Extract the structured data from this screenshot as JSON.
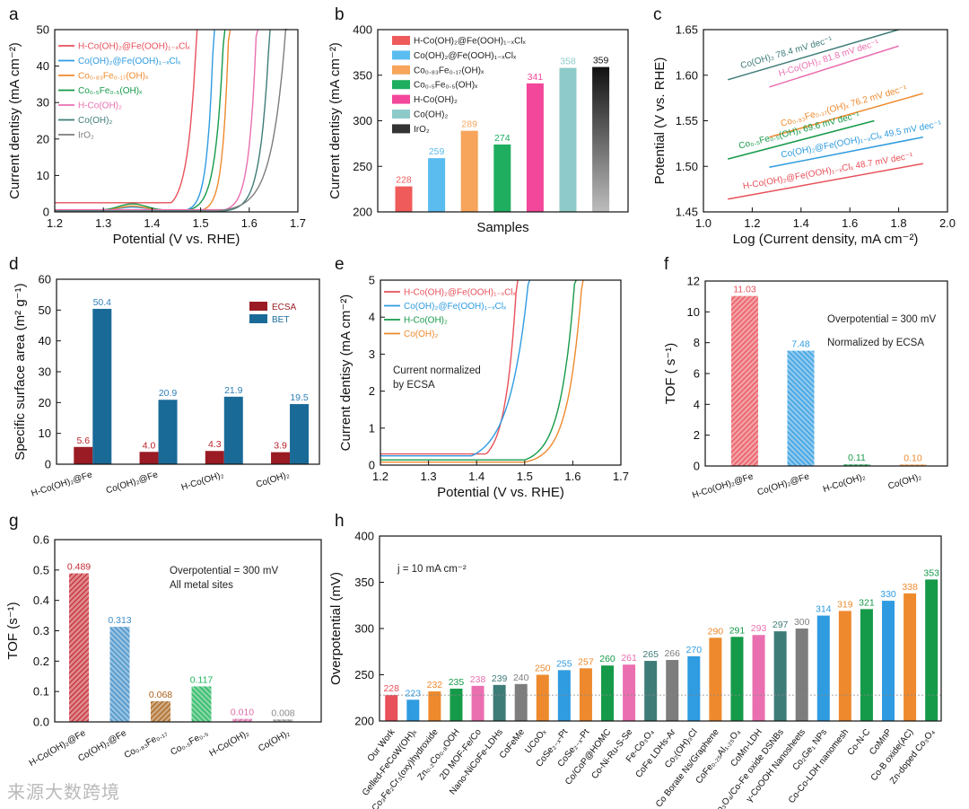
{
  "panels": {
    "a": "a",
    "b": "b",
    "c": "c",
    "d": "d",
    "e": "e",
    "f": "f",
    "g": "g",
    "h": "h"
  },
  "colors": {
    "red": "#e8515a",
    "blue": "#2f9be0",
    "orange": "#ee8a2d",
    "green": "#159a49",
    "pink": "#ea6fb0",
    "teal": "#3e7c78",
    "gray": "#7d7d7d",
    "ecsa": "#9a1b23",
    "bet": "#1a6a98"
  },
  "chart_data": [
    {
      "id": "a",
      "type": "line",
      "xlabel": "Potential (V vs. RHE)",
      "ylabel": "Current dentisy (mA cm⁻²)",
      "xlim": [
        1.2,
        1.7
      ],
      "ylim": [
        0,
        50
      ],
      "xticks": [
        "1.2",
        "1.3",
        "1.4",
        "1.5",
        "1.6",
        "1.7"
      ],
      "yticks": [
        "0",
        "10",
        "20",
        "30",
        "40",
        "50"
      ],
      "legend_position": "top-left",
      "series": [
        {
          "name": "H-Co(OH)₂@Fe(OOH)₁₋ₓClₓ",
          "color": "red",
          "onset": 1.44,
          "end": 1.493,
          "base": 2.5,
          "hump": 0
        },
        {
          "name": "Co(OH)₂@Fe(OOH)₁₋ₓClₓ",
          "color": "blue",
          "onset": 1.47,
          "end": 1.527,
          "base": 0.5,
          "hump": 0.8
        },
        {
          "name": "Co₀.₈₃Fe₀.₁₇(OH)ₓ",
          "color": "orange",
          "onset": 1.5,
          "end": 1.558,
          "base": 0.4,
          "hump": 1.2
        },
        {
          "name": "Co₀.₅Fe₀.₅(OH)ₓ",
          "color": "green",
          "onset": 1.47,
          "end": 1.548,
          "base": 0.4,
          "hump": 1.8
        },
        {
          "name": "H-Co(OH)₂",
          "color": "pink",
          "onset": 1.55,
          "end": 1.615,
          "base": 0.6,
          "hump": 0
        },
        {
          "name": "Co(OH)₂",
          "color": "teal",
          "onset": 1.55,
          "end": 1.642,
          "base": 0.3,
          "hump": 0
        },
        {
          "name": "IrO₂",
          "color": "gray",
          "onset": 1.5,
          "end": 1.675,
          "base": 0.1,
          "hump": 0
        }
      ]
    },
    {
      "id": "b",
      "type": "bar",
      "xlabel": "Samples",
      "ylabel": "Current dentisy (mA cm⁻²)",
      "ylim": [
        200,
        400
      ],
      "yticks": [
        "200",
        "250",
        "300",
        "350",
        "400"
      ],
      "legend_position": "top-left",
      "categories": [
        "H-Co(OH)₂@Fe(OOH)₁₋ₓClₓ",
        "Co(OH)₂@Fe(OOH)₁₋ₓClₓ",
        "Co₀.₈₃Fe₀.₁₇(OH)ₓ",
        "Co₀.₅Fe₀.₅(OH)ₓ",
        "H-Co(OH)₂",
        "Co(OH)₂",
        "IrO₂"
      ],
      "values": [
        228,
        259,
        289,
        274,
        341,
        358,
        359
      ],
      "colors": [
        "#ef5b5b",
        "#5bbcf0",
        "#f6a55b",
        "#1fae5f",
        "#f2479a",
        "#8fcaca",
        "#222222"
      ]
    },
    {
      "id": "c",
      "type": "line",
      "xlabel": "Log (Current density, mA cm⁻²)",
      "ylabel": "Potential (V vs. RHE)",
      "xlim": [
        1.0,
        2.0
      ],
      "ylim": [
        1.45,
        1.65
      ],
      "xticks": [
        "1.0",
        "1.2",
        "1.4",
        "1.6",
        "1.8",
        "2.0"
      ],
      "yticks": [
        "1.45",
        "1.50",
        "1.55",
        "1.60",
        "1.65"
      ],
      "series": [
        {
          "name": "Co(OH)₂ 78.4 mV dec⁻¹",
          "color": "teal",
          "x": [
            1.1,
            1.8
          ],
          "y": [
            1.595,
            1.65
          ]
        },
        {
          "name": "H-Co(OH)₂ 81.8 mV dec⁻¹",
          "color": "pink",
          "x": [
            1.27,
            1.8
          ],
          "y": [
            1.587,
            1.632
          ]
        },
        {
          "name": "Co₀.₈₃Fe₀.₁₇(OH)ₓ 76.2 mV dec⁻¹",
          "color": "orange",
          "x": [
            1.27,
            1.9
          ],
          "y": [
            1.532,
            1.58
          ]
        },
        {
          "name": "Co₀.₅Fe₀.₅(OH)ₓ 69.6 mV dec⁻¹",
          "color": "green",
          "x": [
            1.1,
            1.7
          ],
          "y": [
            1.508,
            1.55
          ]
        },
        {
          "name": "Co(OH)₂@Fe(OOH)₁₋ₓClₓ 49.5 mV dec⁻¹",
          "color": "blue",
          "x": [
            1.27,
            1.9
          ],
          "y": [
            1.499,
            1.532
          ]
        },
        {
          "name": "H-Co(OH)₂@Fe(OOH)₁₋ₓClₓ 48.7 mV dec⁻¹",
          "color": "red",
          "x": [
            1.1,
            1.9
          ],
          "y": [
            1.464,
            1.503
          ]
        }
      ]
    },
    {
      "id": "d",
      "type": "bar",
      "ylabel": "Specific surface area (m² g⁻¹)",
      "ylim": [
        0,
        60
      ],
      "yticks": [
        "0",
        "10",
        "20",
        "30",
        "40",
        "50",
        "60"
      ],
      "legend_position": "top-right",
      "categories": [
        "H-Co(OH)₂@Fe",
        "Co(OH)₂@Fe",
        "H-Co(OH)₂",
        "Co(OH)₂"
      ],
      "series": [
        {
          "name": "ECSA",
          "color": "ecsa",
          "values": [
            5.6,
            4.0,
            4.3,
            3.9
          ],
          "labels": [
            "5.6",
            "4.0",
            "4.3",
            "3.9"
          ]
        },
        {
          "name": "BET",
          "color": "bet",
          "values": [
            50.4,
            20.9,
            21.9,
            19.5
          ],
          "labels": [
            "50.4",
            "20.9",
            "21.9",
            "19.5"
          ]
        }
      ]
    },
    {
      "id": "e",
      "type": "line",
      "xlabel": "Potential (V vs. RHE)",
      "ylabel": "Current dentisy (mA cm⁻²)",
      "xlim": [
        1.2,
        1.7
      ],
      "ylim": [
        0,
        5
      ],
      "xticks": [
        "1.2",
        "1.3",
        "1.4",
        "1.5",
        "1.6",
        "1.7"
      ],
      "yticks": [
        "0",
        "1",
        "2",
        "3",
        "4",
        "5"
      ],
      "annotation": [
        "Current normalized",
        "by ECSA"
      ],
      "legend_position": "top-left",
      "series": [
        {
          "name": "H-Co(OH)₂@Fe(OOH)₁₋ₓClₓ",
          "color": "red",
          "onset": 1.42,
          "end": 1.485,
          "base": 0.3
        },
        {
          "name": "Co(OH)₂@Fe(OOH)₁₋ₓClₓ",
          "color": "blue",
          "onset": 1.39,
          "end": 1.51,
          "base": 0.25
        },
        {
          "name": "H-Co(OH)₂",
          "color": "green",
          "onset": 1.5,
          "end": 1.605,
          "base": 0.14
        },
        {
          "name": "Co(OH)₂",
          "color": "orange",
          "onset": 1.5,
          "end": 1.62,
          "base": 0.08
        }
      ]
    },
    {
      "id": "f",
      "type": "bar",
      "ylabel": "TOF ( s⁻¹)",
      "ylim": [
        0,
        12
      ],
      "yticks": [
        "0",
        "2",
        "4",
        "6",
        "8",
        "10",
        "12"
      ],
      "notes": [
        "Overpotential = 300 mV",
        "Normalized by ECSA"
      ],
      "categories": [
        "H-Co(OH)₂@Fe",
        "Co(OH)₂@Fe",
        "H-Co(OH)₂",
        "Co(OH)₂"
      ],
      "values": [
        11.03,
        7.48,
        0.11,
        0.1
      ],
      "labels": [
        "11.03",
        "7.48",
        "0.11",
        "0.10"
      ],
      "colors": [
        "red",
        "blue",
        "green",
        "orange"
      ]
    },
    {
      "id": "g",
      "type": "bar",
      "ylabel": "TOF (s⁻¹)",
      "ylim": [
        0,
        0.6
      ],
      "yticks": [
        "0.0",
        "0.1",
        "0.2",
        "0.3",
        "0.4",
        "0.5",
        "0.6"
      ],
      "notes": [
        "Overpotential = 300 mV",
        "All metal sites"
      ],
      "categories": [
        "H-Co(OH)₂@Fe",
        "Co(OH)₂@Fe",
        "Co₀.₈₃Fe₀.₁₇",
        "Co₀.₅Fe₀.₅",
        "H-Co(OH)₂",
        "Co(OH)₂"
      ],
      "values": [
        0.489,
        0.313,
        0.068,
        0.117,
        0.01,
        0.008
      ],
      "labels": [
        "0.489",
        "0.313",
        "0.068",
        "0.117",
        "0.010",
        "0.008"
      ],
      "colors": [
        "#c42a33",
        "#3f8dc6",
        "#a8621b",
        "#1fb45a",
        "#e06aa8",
        "#8a8a8a"
      ]
    },
    {
      "id": "h",
      "type": "bar",
      "ylabel": "Overpotential (mV)",
      "ylim": [
        200,
        400
      ],
      "yticks": [
        "200",
        "250",
        "300",
        "350",
        "400"
      ],
      "notes": [
        "j = 10 mA cm⁻²"
      ],
      "categories": [
        "Our Work",
        "Gelled-FeCoW(OH)ₓ",
        "Co₃Fe₂Cr₃(oxy)hydroxide",
        "Zn₀.₂Co₀.₈OOH",
        "2D MOF-Fe/Co",
        "Nano-NiCoFe-LDHs",
        "CoFeMe",
        "UCoOₓ",
        "CoSe₂₋ₓ-Pt",
        "CoSe₂₋ₓ-Pt",
        "Co/CoP@HOMC",
        "Co-Ni-Ru-S-Se",
        "Fe-Co₃O₄",
        "CoFe LDHs-Ar",
        "Co₂(OH)₃Cl",
        "Co Borate Ns/Graphene",
        "CoFe₀.₂₅Al₁.₂₅O₄",
        "CoMn-LDH",
        "Co₃O₄/Co-Fe oxide DSNBs",
        "γ-CoOOH Nanosheets",
        "Co₂Ge₁ NPs",
        "Co-Co-LDH nanomesh",
        "Co-N-C",
        "CoMnP",
        "Co-B oxide(AC)",
        "Zn-doped Co₃O₄"
      ],
      "values": [
        228,
        223,
        232,
        235,
        238,
        239,
        240,
        250,
        255,
        257,
        260,
        261,
        265,
        266,
        270,
        290,
        291,
        293,
        297,
        300,
        314,
        319,
        321,
        330,
        338,
        353
      ],
      "colors": [
        "#e8515a",
        "#2f9be0",
        "#ee8a2d",
        "#159a49",
        "#ea6fb0",
        "#3e7c78",
        "#7d7d7d",
        "#ee8a2d",
        "#2f9be0",
        "#ee8a2d",
        "#159a49",
        "#ea6fb0",
        "#3e7c78",
        "#7d7d7d",
        "#2f9be0",
        "#ee8a2d",
        "#159a49",
        "#ea6fb0",
        "#3e7c78",
        "#7d7d7d",
        "#2f9be0",
        "#ee8a2d",
        "#159a49",
        "#2f9be0",
        "#ee8a2d",
        "#159a49"
      ],
      "reference_line": 228
    }
  ],
  "watermark": "来源大数跨境"
}
